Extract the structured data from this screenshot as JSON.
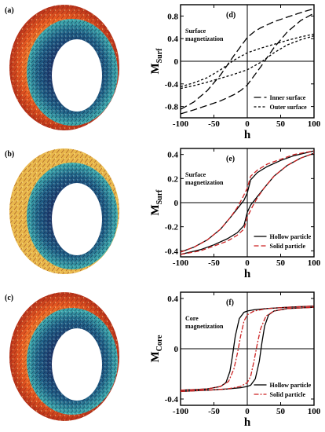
{
  "figure_panels": [
    {
      "label": "(a)"
    },
    {
      "label": "(b)"
    },
    {
      "label": "(c)"
    }
  ],
  "chart_data": [
    {
      "type": "line",
      "panel_label": "(d)",
      "annotation": [
        "Surface",
        "magnetization"
      ],
      "xlabel": "h",
      "ylabel": "M",
      "ylabel_sub": "Surf",
      "xlim": [
        -100,
        100
      ],
      "ylim": [
        -1.0,
        1.0
      ],
      "xticks": [
        -100,
        -50,
        0,
        50,
        100
      ],
      "yticks": [
        -0.8,
        -0.4,
        0,
        0.4,
        0.8
      ],
      "ytick_labels": [
        "-0.8",
        "-0.4",
        "0",
        "0.4",
        "0.8"
      ],
      "grid": false,
      "legend_position": "bottom-right",
      "series": [
        {
          "name": "Inner surface",
          "color": "#000000",
          "dash": "long",
          "upper": {
            "x": [
              -100,
              -80,
              -60,
              -40,
              -20,
              -10,
              0,
              10,
              20,
              40,
              60,
              80,
              100
            ],
            "y": [
              -0.85,
              -0.72,
              -0.52,
              -0.24,
              0.1,
              0.26,
              0.42,
              0.52,
              0.59,
              0.7,
              0.78,
              0.86,
              0.93
            ]
          },
          "lower": {
            "x": [
              -100,
              -80,
              -60,
              -40,
              -20,
              -10,
              0,
              10,
              20,
              40,
              60,
              80,
              100
            ],
            "y": [
              -0.93,
              -0.86,
              -0.78,
              -0.7,
              -0.59,
              -0.52,
              -0.42,
              -0.26,
              -0.1,
              0.24,
              0.52,
              0.72,
              0.85
            ]
          }
        },
        {
          "name": "Outer surface",
          "color": "#000000",
          "dash": "short",
          "upper": {
            "x": [
              -100,
              -80,
              -60,
              -40,
              -20,
              0,
              20,
              40,
              60,
              80,
              100
            ],
            "y": [
              -0.45,
              -0.38,
              -0.29,
              -0.15,
              0.02,
              0.15,
              0.23,
              0.3,
              0.37,
              0.43,
              0.48
            ]
          },
          "lower": {
            "x": [
              -100,
              -80,
              -60,
              -40,
              -20,
              0,
              20,
              40,
              60,
              80,
              100
            ],
            "y": [
              -0.48,
              -0.43,
              -0.37,
              -0.3,
              -0.23,
              -0.15,
              -0.02,
              0.15,
              0.29,
              0.38,
              0.45
            ]
          }
        }
      ]
    },
    {
      "type": "line",
      "panel_label": "(e)",
      "annotation": [
        "Surface",
        "magnetization"
      ],
      "xlabel": "h",
      "ylabel": "M",
      "ylabel_sub": "Surf",
      "xlim": [
        -100,
        100
      ],
      "ylim": [
        -0.45,
        0.45
      ],
      "xticks": [
        -100,
        -50,
        0,
        50,
        100
      ],
      "yticks": [
        -0.4,
        -0.2,
        0,
        0.2,
        0.4
      ],
      "ytick_labels": [
        "-0.4",
        "-0.2",
        "0",
        "0.2",
        "0.4"
      ],
      "grid": false,
      "legend_position": "bottom-right",
      "series": [
        {
          "name": "Hollow particle",
          "color": "#000000",
          "dash": "solid",
          "upper": {
            "x": [
              -100,
              -80,
              -60,
              -40,
              -25,
              -15,
              -5,
              0,
              5,
              15,
              30,
              50,
              70,
              100
            ],
            "y": [
              -0.41,
              -0.37,
              -0.31,
              -0.22,
              -0.12,
              -0.05,
              0.02,
              0.08,
              0.19,
              0.25,
              0.3,
              0.35,
              0.39,
              0.43
            ]
          },
          "lower": {
            "x": [
              -100,
              -70,
              -50,
              -30,
              -15,
              -5,
              0,
              5,
              15,
              25,
              40,
              60,
              80,
              100
            ],
            "y": [
              -0.43,
              -0.39,
              -0.35,
              -0.3,
              -0.25,
              -0.19,
              -0.08,
              -0.02,
              0.05,
              0.12,
              0.22,
              0.31,
              0.37,
              0.41
            ]
          }
        },
        {
          "name": "Solid particle",
          "color": "#cc2222",
          "dash": "dash",
          "upper": {
            "x": [
              -100,
              -80,
              -60,
              -40,
              -25,
              -15,
              -8,
              0,
              5,
              15,
              30,
              50,
              70,
              100
            ],
            "y": [
              -0.41,
              -0.37,
              -0.31,
              -0.22,
              -0.12,
              -0.04,
              0.03,
              0.12,
              0.22,
              0.27,
              0.32,
              0.36,
              0.4,
              0.43
            ]
          },
          "lower": {
            "x": [
              -100,
              -70,
              -50,
              -30,
              -15,
              -5,
              0,
              8,
              15,
              25,
              40,
              60,
              80,
              100
            ],
            "y": [
              -0.43,
              -0.4,
              -0.36,
              -0.32,
              -0.27,
              -0.22,
              -0.12,
              -0.03,
              0.04,
              0.12,
              0.22,
              0.31,
              0.37,
              0.41
            ]
          }
        }
      ]
    },
    {
      "type": "line",
      "panel_label": "(f)",
      "annotation": [
        "Core",
        "magnetization"
      ],
      "xlabel": "h",
      "ylabel": "M",
      "ylabel_sub": "Core",
      "xlim": [
        -100,
        100
      ],
      "ylim": [
        -0.45,
        0.45
      ],
      "xticks": [
        -100,
        -50,
        0,
        50,
        100
      ],
      "yticks": [
        -0.4,
        0,
        0.4
      ],
      "ytick_labels": [
        "-0.4",
        "0",
        "0.4"
      ],
      "grid": false,
      "legend_position": "bottom-right",
      "series": [
        {
          "name": "Hollow particle",
          "color": "#000000",
          "dash": "solid",
          "upper": {
            "x": [
              -100,
              -60,
              -40,
              -32,
              -26,
              -22,
              -18,
              -12,
              -5,
              0,
              10,
              30,
              60,
              100
            ],
            "y": [
              -0.33,
              -0.32,
              -0.3,
              -0.27,
              -0.18,
              -0.05,
              0.1,
              0.24,
              0.29,
              0.3,
              0.31,
              0.32,
              0.33,
              0.34
            ]
          },
          "lower": {
            "x": [
              -100,
              -60,
              -30,
              -10,
              0,
              5,
              12,
              18,
              22,
              26,
              32,
              40,
              60,
              100
            ],
            "y": [
              -0.34,
              -0.33,
              -0.32,
              -0.31,
              -0.3,
              -0.29,
              -0.24,
              -0.1,
              0.05,
              0.18,
              0.27,
              0.3,
              0.32,
              0.33
            ]
          }
        },
        {
          "name": "Solid particle",
          "color": "#cc2222",
          "dash": "dashdot",
          "upper": {
            "x": [
              -100,
              -60,
              -40,
              -28,
              -20,
              -15,
              -10,
              -5,
              0,
              10,
              30,
              60,
              100
            ],
            "y": [
              -0.33,
              -0.32,
              -0.3,
              -0.26,
              -0.16,
              -0.04,
              0.1,
              0.22,
              0.27,
              0.3,
              0.32,
              0.33,
              0.34
            ]
          },
          "lower": {
            "x": [
              -100,
              -60,
              -30,
              -10,
              0,
              5,
              10,
              15,
              20,
              28,
              40,
              60,
              100
            ],
            "y": [
              -0.34,
              -0.33,
              -0.32,
              -0.3,
              -0.27,
              -0.22,
              -0.1,
              0.04,
              0.16,
              0.26,
              0.3,
              0.32,
              0.33
            ]
          }
        }
      ]
    }
  ]
}
